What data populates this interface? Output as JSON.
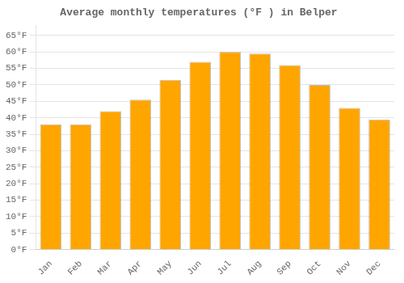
{
  "chart_data": {
    "type": "bar",
    "title": "Average monthly temperatures (°F ) in Belper",
    "categories": [
      "Jan",
      "Feb",
      "Mar",
      "Apr",
      "May",
      "Jun",
      "Jul",
      "Aug",
      "Sep",
      "Oct",
      "Nov",
      "Dec"
    ],
    "values": [
      38,
      38,
      42,
      45.5,
      51.5,
      57,
      60,
      59.5,
      56,
      50,
      43,
      39.5
    ],
    "color": "#FFA500",
    "ylim": [
      0,
      68
    ],
    "yticks": [
      {
        "value": 0,
        "label": "0°F"
      },
      {
        "value": 5,
        "label": "5°F"
      },
      {
        "value": 10,
        "label": "10°F"
      },
      {
        "value": 15,
        "label": "15°F"
      },
      {
        "value": 20,
        "label": "20°F"
      },
      {
        "value": 25,
        "label": "25°F"
      },
      {
        "value": 30,
        "label": "30°F"
      },
      {
        "value": 35,
        "label": "35°F"
      },
      {
        "value": 40,
        "label": "40°F"
      },
      {
        "value": 45,
        "label": "45°F"
      },
      {
        "value": 50,
        "label": "50°F"
      },
      {
        "value": 55,
        "label": "55°F"
      },
      {
        "value": 60,
        "label": "60°F"
      },
      {
        "value": 65,
        "label": "65°F"
      }
    ],
    "grid": true
  }
}
